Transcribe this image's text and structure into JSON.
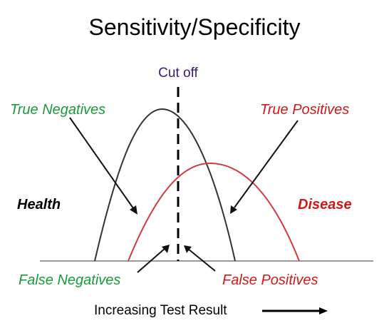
{
  "title": "Sensitivity/Specificity",
  "cutoff_label": "Cut off",
  "labels": {
    "true_negatives": "True Negatives",
    "true_positives": "True Positives",
    "health": "Health",
    "disease": "Disease",
    "false_negatives": "False Negatives",
    "false_positives": "False Positives"
  },
  "x_axis_label": "Increasing Test Result",
  "colors": {
    "title": "#000000",
    "cutoff": "#3a1a7a",
    "green": "#1a9a3a",
    "red": "#d01818",
    "health_curve": "#333333",
    "disease_curve": "#d23b3b",
    "axis": "#9a9a9a",
    "arrow": "#111111"
  }
}
